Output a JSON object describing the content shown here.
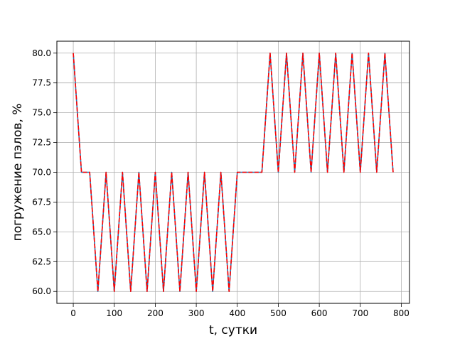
{
  "chart_data": {
    "type": "line",
    "title": "",
    "xlabel": "t, сутки",
    "ylabel": "погружение пэлов, %",
    "xlim": [
      -40,
      820
    ],
    "ylim": [
      59.0,
      81.0
    ],
    "xticks": [
      0,
      100,
      200,
      300,
      400,
      500,
      600,
      700,
      800
    ],
    "xtick_labels": [
      "0",
      "100",
      "200",
      "300",
      "400",
      "500",
      "600",
      "700",
      "800"
    ],
    "yticks": [
      60.0,
      62.5,
      65.0,
      67.5,
      70.0,
      72.5,
      75.0,
      77.5,
      80.0
    ],
    "ytick_labels": [
      "60.0",
      "62.5",
      "65.0",
      "67.5",
      "70.0",
      "72.5",
      "75.0",
      "77.5",
      "80.0"
    ],
    "grid": true,
    "legend": false,
    "series": [
      {
        "color": "#1f77b4",
        "style": "solid",
        "x": [
          0,
          20,
          40,
          60,
          80,
          100,
          120,
          140,
          160,
          180,
          200,
          220,
          240,
          260,
          280,
          300,
          320,
          340,
          360,
          380,
          400,
          420,
          440,
          460,
          480,
          500,
          520,
          540,
          560,
          580,
          600,
          620,
          640,
          660,
          680,
          700,
          720,
          740,
          760,
          780
        ],
        "y": [
          80,
          70,
          70,
          60,
          70,
          60,
          70,
          60,
          70,
          60,
          70,
          60,
          70,
          60,
          70,
          60,
          70,
          60,
          70,
          60,
          70,
          70,
          70,
          70,
          80,
          70,
          80,
          70,
          80,
          70,
          80,
          70,
          80,
          70,
          80,
          70,
          80,
          70,
          80,
          70
        ]
      },
      {
        "color": "#ff0000",
        "style": "dashed",
        "x": [
          0,
          20,
          40,
          60,
          80,
          100,
          120,
          140,
          160,
          180,
          200,
          220,
          240,
          260,
          280,
          300,
          320,
          340,
          360,
          380,
          400,
          420,
          440,
          460,
          480,
          500,
          520,
          540,
          560,
          580,
          600,
          620,
          640,
          660,
          680,
          700,
          720,
          740,
          760,
          780
        ],
        "y": [
          80,
          70,
          70,
          60,
          70,
          60,
          70,
          60,
          70,
          60,
          70,
          60,
          70,
          60,
          70,
          60,
          70,
          60,
          70,
          60,
          70,
          70,
          70,
          70,
          80,
          70,
          80,
          70,
          80,
          70,
          80,
          70,
          80,
          70,
          80,
          70,
          80,
          70,
          80,
          70
        ]
      }
    ]
  }
}
